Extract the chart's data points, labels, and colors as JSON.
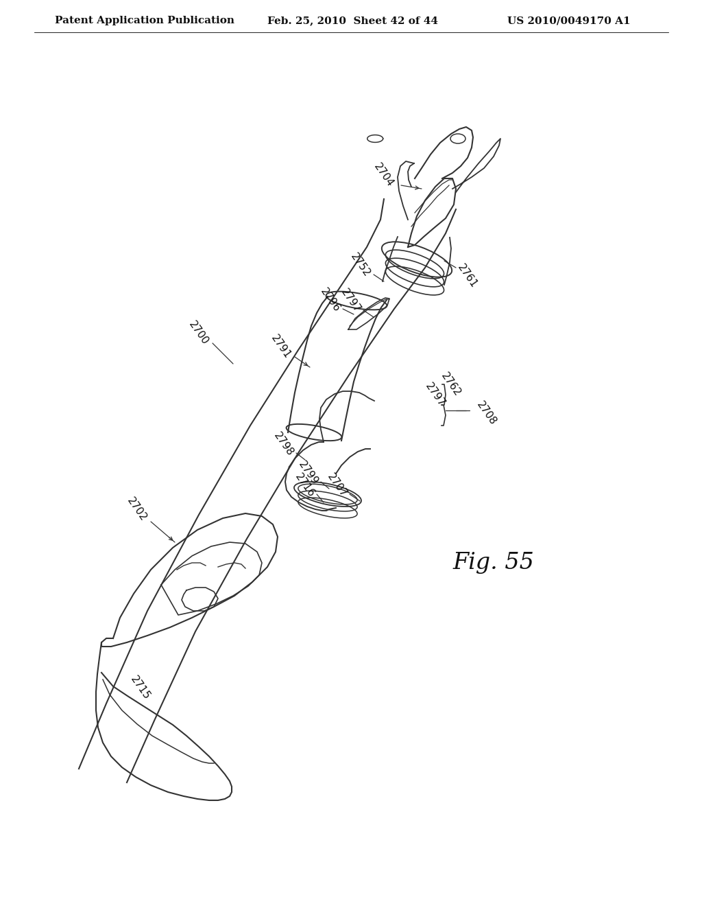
{
  "bg_color": "#ffffff",
  "page_width": 10.24,
  "page_height": 13.2,
  "header_text1": "Patent Application Publication",
  "header_text2": "Feb. 25, 2010  Sheet 42 of 44",
  "header_text3": "US 2010/0049170 A1",
  "fig_label": "Fig. 55",
  "header_fontsize": 11,
  "fig_fontsize": 24
}
